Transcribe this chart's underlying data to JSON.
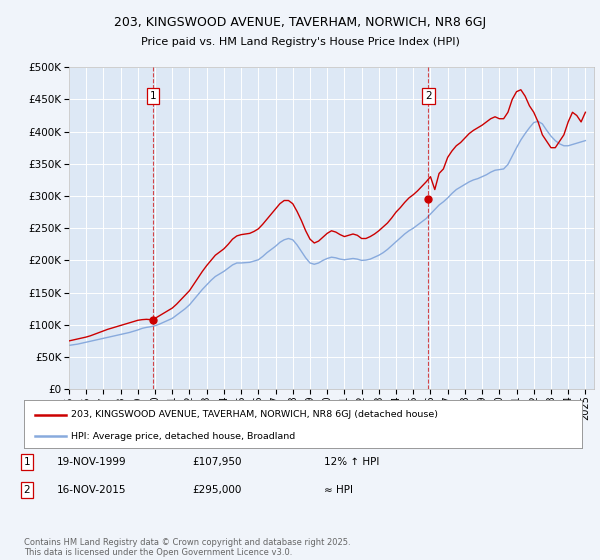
{
  "title": "203, KINGSWOOD AVENUE, TAVERHAM, NORWICH, NR8 6GJ",
  "subtitle": "Price paid vs. HM Land Registry's House Price Index (HPI)",
  "bg_color": "#f0f4fa",
  "plot_bg_color": "#dde8f5",
  "ylabel_ticks": [
    "£0",
    "£50K",
    "£100K",
    "£150K",
    "£200K",
    "£250K",
    "£300K",
    "£350K",
    "£400K",
    "£450K",
    "£500K"
  ],
  "ytick_values": [
    0,
    50000,
    100000,
    150000,
    200000,
    250000,
    300000,
    350000,
    400000,
    450000,
    500000
  ],
  "ylim": [
    0,
    500000
  ],
  "xlim_start": 1995.0,
  "xlim_end": 2025.5,
  "marker1_x": 1999.88,
  "marker1_label": "1",
  "marker2_x": 2015.88,
  "marker2_label": "2",
  "marker1_y": 107950,
  "marker2_y": 295000,
  "legend_line1": "203, KINGSWOOD AVENUE, TAVERHAM, NORWICH, NR8 6GJ (detached house)",
  "legend_line2": "HPI: Average price, detached house, Broadland",
  "line1_color": "#cc0000",
  "line2_color": "#88aadd",
  "table_row1": [
    "1",
    "19-NOV-1999",
    "£107,950",
    "12% ↑ HPI"
  ],
  "table_row2": [
    "2",
    "16-NOV-2015",
    "£295,000",
    "≈ HPI"
  ],
  "footer": "Contains HM Land Registry data © Crown copyright and database right 2025.\nThis data is licensed under the Open Government Licence v3.0.",
  "hpi_years": [
    1995.0,
    1995.25,
    1995.5,
    1995.75,
    1996.0,
    1996.25,
    1996.5,
    1996.75,
    1997.0,
    1997.25,
    1997.5,
    1997.75,
    1998.0,
    1998.25,
    1998.5,
    1998.75,
    1999.0,
    1999.25,
    1999.5,
    1999.75,
    2000.0,
    2000.25,
    2000.5,
    2000.75,
    2001.0,
    2001.25,
    2001.5,
    2001.75,
    2002.0,
    2002.25,
    2002.5,
    2002.75,
    2003.0,
    2003.25,
    2003.5,
    2003.75,
    2004.0,
    2004.25,
    2004.5,
    2004.75,
    2005.0,
    2005.25,
    2005.5,
    2005.75,
    2006.0,
    2006.25,
    2006.5,
    2006.75,
    2007.0,
    2007.25,
    2007.5,
    2007.75,
    2008.0,
    2008.25,
    2008.5,
    2008.75,
    2009.0,
    2009.25,
    2009.5,
    2009.75,
    2010.0,
    2010.25,
    2010.5,
    2010.75,
    2011.0,
    2011.25,
    2011.5,
    2011.75,
    2012.0,
    2012.25,
    2012.5,
    2012.75,
    2013.0,
    2013.25,
    2013.5,
    2013.75,
    2014.0,
    2014.25,
    2014.5,
    2014.75,
    2015.0,
    2015.25,
    2015.5,
    2015.75,
    2016.0,
    2016.25,
    2016.5,
    2016.75,
    2017.0,
    2017.25,
    2017.5,
    2017.75,
    2018.0,
    2018.25,
    2018.5,
    2018.75,
    2019.0,
    2019.25,
    2019.5,
    2019.75,
    2020.0,
    2020.25,
    2020.5,
    2020.75,
    2021.0,
    2021.25,
    2021.5,
    2021.75,
    2022.0,
    2022.25,
    2022.5,
    2022.75,
    2023.0,
    2023.25,
    2023.5,
    2023.75,
    2024.0,
    2024.25,
    2024.5,
    2024.75,
    2025.0
  ],
  "hpi_values": [
    68000,
    69000,
    70000,
    71500,
    73000,
    74500,
    76000,
    77500,
    79000,
    80500,
    82000,
    83500,
    85000,
    86500,
    88000,
    90000,
    92000,
    94500,
    96000,
    97000,
    98500,
    101000,
    104000,
    107000,
    110000,
    115000,
    120000,
    125000,
    131000,
    139000,
    147000,
    155000,
    162000,
    169000,
    175000,
    179000,
    183000,
    188000,
    193000,
    196000,
    196000,
    196500,
    197000,
    199000,
    201000,
    206000,
    212000,
    217000,
    222000,
    228000,
    232000,
    234000,
    232000,
    224000,
    214000,
    204000,
    196000,
    194000,
    196000,
    200000,
    203000,
    205000,
    204000,
    202000,
    201000,
    202000,
    203000,
    202000,
    200000,
    200500,
    202000,
    205000,
    208000,
    212000,
    217000,
    223000,
    229000,
    235000,
    241000,
    246000,
    250000,
    255000,
    260000,
    265000,
    272000,
    279000,
    286000,
    291000,
    297000,
    304000,
    310000,
    314000,
    318000,
    322000,
    325000,
    327000,
    330000,
    333000,
    337000,
    340000,
    341000,
    342000,
    349000,
    362000,
    375000,
    387000,
    397000,
    406000,
    414000,
    416000,
    412000,
    402000,
    393000,
    386000,
    381000,
    378000,
    378000,
    380000,
    382000,
    384000,
    386000
  ],
  "red_years": [
    1995.0,
    1995.25,
    1995.5,
    1995.75,
    1996.0,
    1996.25,
    1996.5,
    1996.75,
    1997.0,
    1997.25,
    1997.5,
    1997.75,
    1998.0,
    1998.25,
    1998.5,
    1998.75,
    1999.0,
    1999.25,
    1999.5,
    1999.75,
    2000.0,
    2000.25,
    2000.5,
    2000.75,
    2001.0,
    2001.25,
    2001.5,
    2001.75,
    2002.0,
    2002.25,
    2002.5,
    2002.75,
    2003.0,
    2003.25,
    2003.5,
    2003.75,
    2004.0,
    2004.25,
    2004.5,
    2004.75,
    2005.0,
    2005.25,
    2005.5,
    2005.75,
    2006.0,
    2006.25,
    2006.5,
    2006.75,
    2007.0,
    2007.25,
    2007.5,
    2007.75,
    2008.0,
    2008.25,
    2008.5,
    2008.75,
    2009.0,
    2009.25,
    2009.5,
    2009.75,
    2010.0,
    2010.25,
    2010.5,
    2010.75,
    2011.0,
    2011.25,
    2011.5,
    2011.75,
    2012.0,
    2012.25,
    2012.5,
    2012.75,
    2013.0,
    2013.25,
    2013.5,
    2013.75,
    2014.0,
    2014.25,
    2014.5,
    2014.75,
    2015.0,
    2015.25,
    2015.5,
    2015.75,
    2016.0,
    2016.25,
    2016.5,
    2016.75,
    2017.0,
    2017.25,
    2017.5,
    2017.75,
    2018.0,
    2018.25,
    2018.5,
    2018.75,
    2019.0,
    2019.25,
    2019.5,
    2019.75,
    2020.0,
    2020.25,
    2020.5,
    2020.75,
    2021.0,
    2021.25,
    2021.5,
    2021.75,
    2022.0,
    2022.25,
    2022.5,
    2022.75,
    2023.0,
    2023.25,
    2023.5,
    2023.75,
    2024.0,
    2024.25,
    2024.5,
    2024.75,
    2025.0
  ],
  "red_values": [
    75000,
    76500,
    78000,
    79500,
    81000,
    83000,
    85500,
    88000,
    90500,
    93000,
    95000,
    97000,
    99000,
    101000,
    103000,
    105000,
    107000,
    108000,
    108500,
    107950,
    110000,
    114000,
    118000,
    122000,
    126000,
    132000,
    139000,
    146000,
    153000,
    163000,
    173000,
    183000,
    192000,
    200000,
    208000,
    213000,
    218000,
    225000,
    233000,
    238000,
    240000,
    241000,
    242000,
    245000,
    249000,
    256000,
    264000,
    272000,
    280000,
    288000,
    293000,
    293000,
    288000,
    276000,
    262000,
    246000,
    233000,
    227000,
    230000,
    236000,
    242000,
    246000,
    244000,
    240000,
    237000,
    239000,
    241000,
    239000,
    234000,
    234000,
    237000,
    241000,
    246000,
    252000,
    258000,
    266000,
    275000,
    282000,
    290000,
    297000,
    302000,
    308000,
    315000,
    322000,
    330000,
    310000,
    335000,
    342000,
    360000,
    370000,
    378000,
    383000,
    390000,
    397000,
    402000,
    406000,
    410000,
    415000,
    420000,
    423000,
    420000,
    420000,
    430000,
    450000,
    462000,
    465000,
    455000,
    440000,
    430000,
    415000,
    395000,
    385000,
    375000,
    375000,
    385000,
    395000,
    415000,
    430000,
    425000,
    415000,
    430000
  ],
  "xtick_years": [
    1995,
    1996,
    1997,
    1998,
    1999,
    2000,
    2001,
    2002,
    2003,
    2004,
    2005,
    2006,
    2007,
    2008,
    2009,
    2010,
    2011,
    2012,
    2013,
    2014,
    2015,
    2016,
    2017,
    2018,
    2019,
    2020,
    2021,
    2022,
    2023,
    2024,
    2025
  ]
}
